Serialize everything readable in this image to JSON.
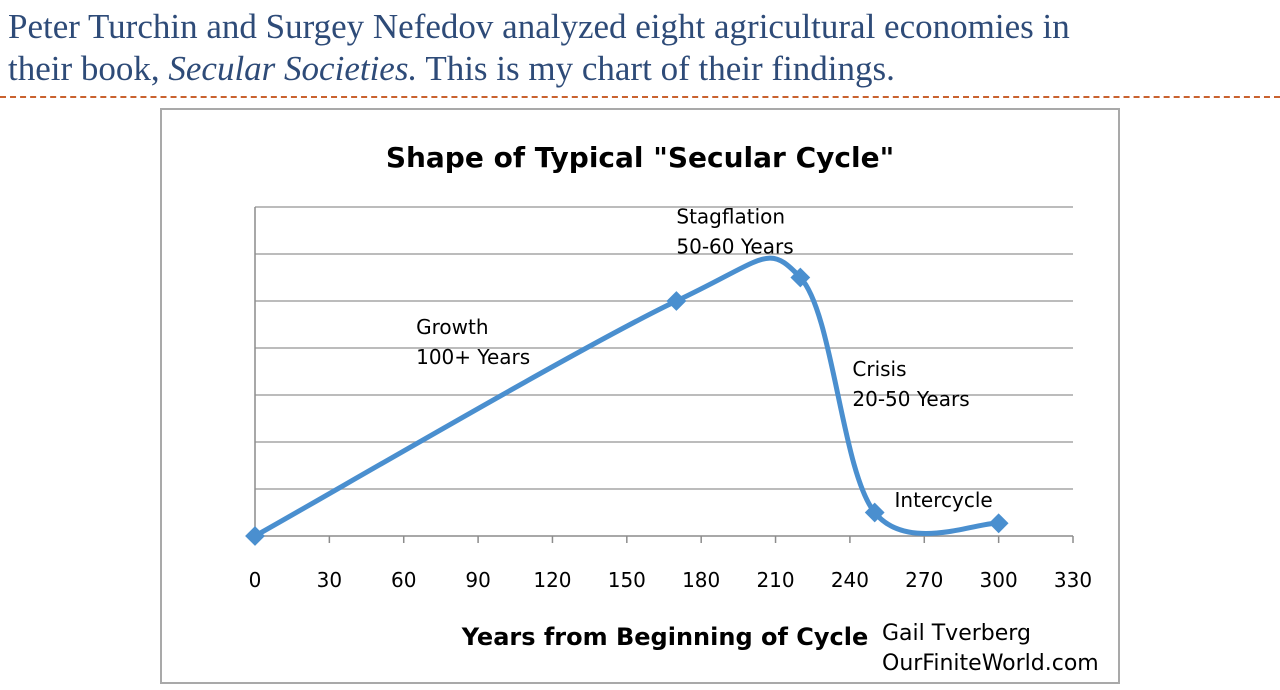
{
  "heading": {
    "line1": "Peter Turchin and Surgey Nefedov analyzed eight agricultural economies in",
    "line2_prefix": "their book, ",
    "line2_italic": "Secular Societies.",
    "line2_suffix": " This is my chart of their findings."
  },
  "chart_data": {
    "type": "line",
    "title": "Shape of Typical \"Secular Cycle\"",
    "xlabel": "Years from Beginning of Cycle",
    "ylabel": "",
    "xlim": [
      0,
      330
    ],
    "ylim": [
      0,
      7
    ],
    "x_ticks": [
      0,
      30,
      60,
      90,
      120,
      150,
      180,
      210,
      240,
      270,
      300,
      330
    ],
    "y_ticks_labeled": false,
    "grid": "horizontal",
    "series": [
      {
        "color": "#4a8fcf",
        "points": [
          {
            "x": 0,
            "y": 0
          },
          {
            "x": 170,
            "y": 5
          },
          {
            "x": 220,
            "y": 5.5
          },
          {
            "x": 250,
            "y": 0.5
          },
          {
            "x": 300,
            "y": 0.27
          }
        ]
      }
    ],
    "annotations": [
      {
        "lines": [
          "Growth",
          "100+ Years"
        ],
        "x": 65,
        "y": 4.3
      },
      {
        "lines": [
          "Stagflation",
          "50-60 Years"
        ],
        "x": 170,
        "y": 6.65
      },
      {
        "lines": [
          "Crisis",
          "20-50 Years"
        ],
        "x": 241,
        "y": 3.4
      },
      {
        "lines": [
          "Intercycle"
        ],
        "x": 258,
        "y": 0.62
      }
    ]
  },
  "credit": {
    "author": "Gail Tverberg",
    "site": "OurFiniteWorld.com"
  }
}
